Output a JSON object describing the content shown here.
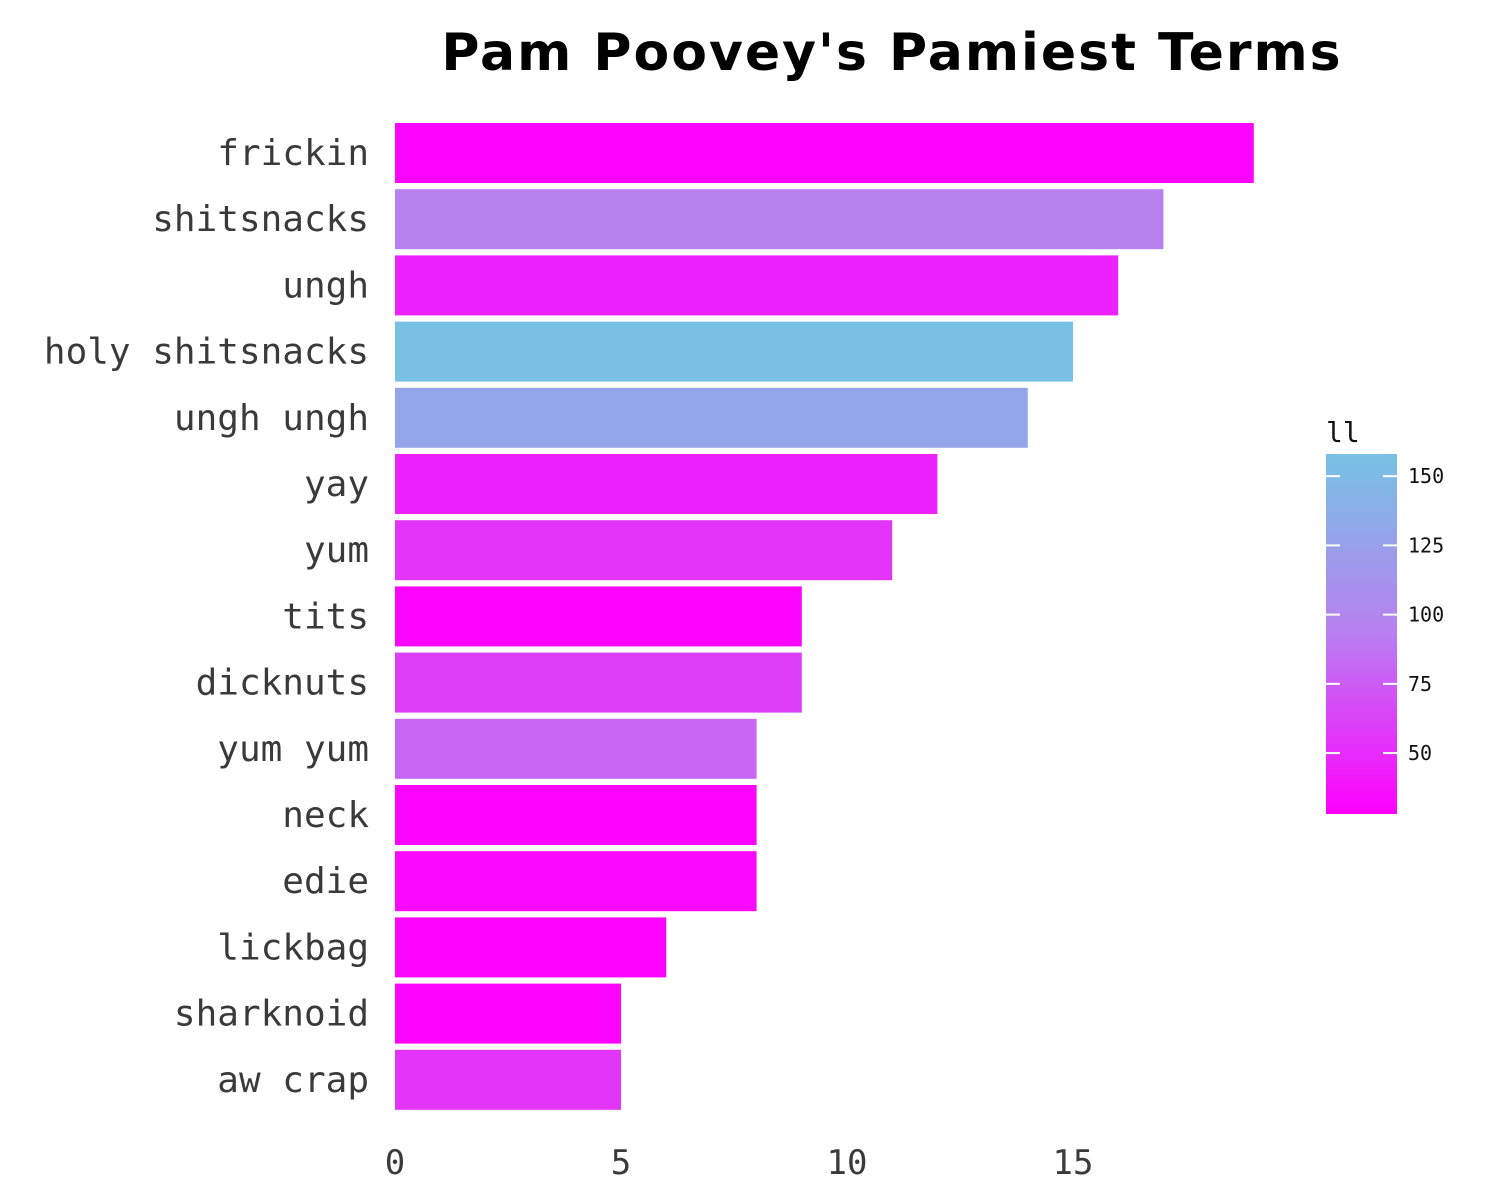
{
  "chart_data": {
    "type": "bar",
    "orientation": "horizontal",
    "title": "Pam Poovey's Pamiest Terms",
    "xlabel": "",
    "ylabel": "",
    "xlim": [
      0,
      19.5
    ],
    "x_ticks": [
      0,
      5,
      10,
      15
    ],
    "grid": false,
    "categories": [
      "frickin",
      "shitsnacks",
      "ungh",
      "holy shitsnacks",
      "ungh ungh",
      "yay",
      "yum",
      "tits",
      "dicknuts",
      "yum yum",
      "neck",
      "edie",
      "lickbag",
      "sharknoid",
      "aw crap"
    ],
    "values": [
      19,
      17,
      16,
      15,
      14,
      12,
      11,
      9,
      9,
      8,
      8,
      8,
      6,
      5,
      5
    ],
    "fill_values": [
      30,
      95,
      45,
      155,
      130,
      45,
      55,
      30,
      60,
      80,
      30,
      32,
      30,
      30,
      55
    ],
    "legend": {
      "title": "ll",
      "placement": "right",
      "ticks": [
        50,
        75,
        100,
        125,
        150
      ],
      "range": [
        28,
        158
      ],
      "color_low": "#ff00ff",
      "color_high": "#76c3e4"
    }
  }
}
